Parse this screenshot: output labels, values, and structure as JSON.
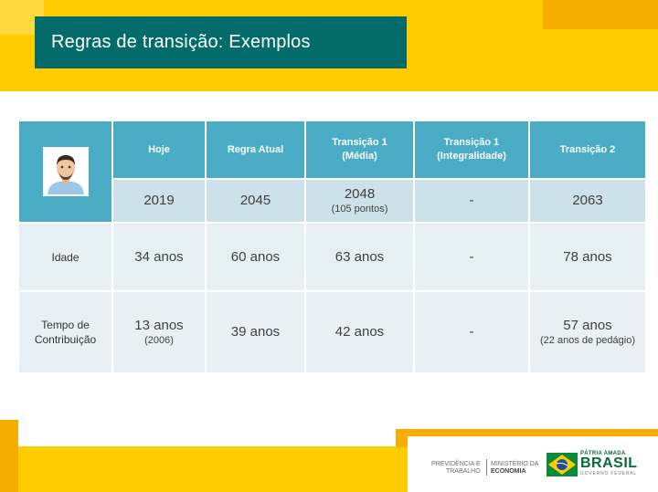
{
  "slide": {
    "title": "Regras de transição: Exemplos"
  },
  "table": {
    "headers": [
      "Hoje",
      "Regra Atual",
      "Transição 1\n(Média)",
      "Transição 1\n(Integralidade)",
      "Transição 2"
    ],
    "year_row": {
      "hoje": "2019",
      "regra_atual": "2045",
      "media": "2048",
      "media_note": "(105 pontos)",
      "integralidade": "-",
      "transicao2": "2063"
    },
    "idade_row": {
      "label": "Idade",
      "hoje": "34 anos",
      "regra_atual": "60 anos",
      "media": "63 anos",
      "integralidade": "-",
      "transicao2": "78 anos"
    },
    "contrib_row": {
      "label_line1": "Tempo de",
      "label_line2": "Contribuição",
      "hoje": "13 anos",
      "hoje_note": "(2006)",
      "regra_atual": "39 anos",
      "media": "42 anos",
      "integralidade": "-",
      "transicao2": "57 anos",
      "transicao2_note": "(22 anos de pedágio)"
    },
    "avatar_icon": "person-avatar-icon"
  },
  "footer": {
    "logo_left_line1": "PREVIDÊNCIA E",
    "logo_left_line2": "TRABALHO",
    "logo_mid_line1": "MINISTÉRIO DA",
    "logo_mid_line2": "ECONOMIA",
    "brasil_top": "PÁTRIA AMADA",
    "brasil_main": "BRASIL",
    "brasil_sub": "GOVERNO FEDERAL"
  },
  "colors": {
    "yellow": "#ffcc00",
    "orange": "#f6ad00",
    "teal": "#046b6b",
    "header_blue": "#4bacc6"
  }
}
